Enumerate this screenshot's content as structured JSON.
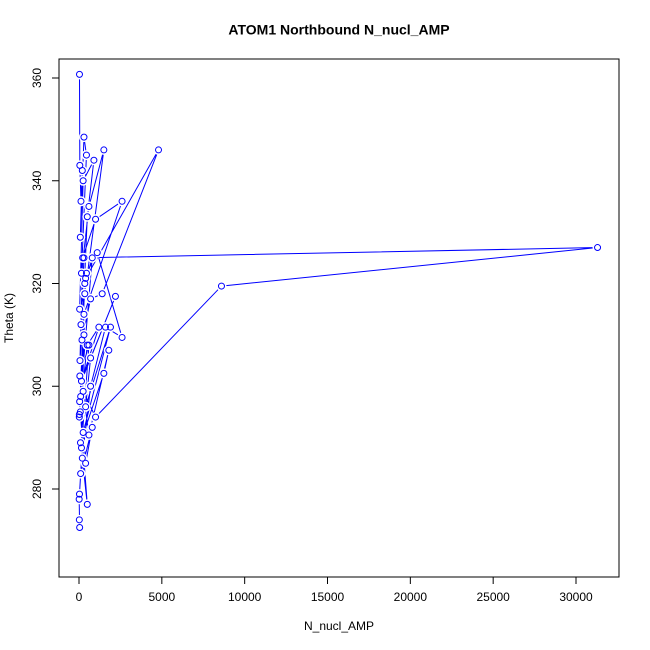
{
  "chart_data": {
    "type": "line",
    "title": "ATOM1 Northbound N_nucl_AMP",
    "x_label": "N_nucl_AMP",
    "y_label": "Theta (K)",
    "color": "#0000ff",
    "markers": true,
    "xlim": [
      -1207,
      32595
    ],
    "ylim": [
      262.87,
      363.7
    ],
    "xticks": [
      0,
      5000,
      10000,
      15000,
      20000,
      25000,
      30000
    ],
    "yticks": [
      280,
      300,
      320,
      340,
      360
    ],
    "series": [
      {
        "name": "N_nucl_AMP",
        "color": "#0000ff",
        "x": [
          30,
          50,
          120,
          200,
          80,
          300,
          450,
          150,
          600,
          1500,
          350,
          40,
          250,
          900,
          500,
          180,
          700,
          1400,
          4800,
          400,
          60,
          220,
          1000,
          2600,
          300,
          100,
          800,
          350,
          20,
          500,
          1200,
          150,
          2200,
          700,
          400,
          1900,
          90,
          1500,
          1800,
          600,
          250,
          1000,
          8600,
          31300,
          300,
          120,
          450,
          1100,
          2600,
          1600,
          700,
          200,
          500,
          80,
          40,
          20,
          300,
          150,
          600,
          50,
          400,
          800,
          100,
          30,
          250,
          10,
          40,
          20
        ],
        "values": [
          360.7,
          343,
          336,
          342,
          329,
          348.5,
          345,
          322,
          335,
          346,
          318,
          315,
          340,
          344,
          333,
          309,
          317,
          318,
          346,
          321,
          305,
          325,
          332.5,
          336,
          314,
          298,
          325,
          320,
          294,
          308,
          311.5,
          301,
          317.5,
          305.5,
          296,
          311.5,
          289,
          302.5,
          307,
          290.5,
          299,
          294,
          319.5,
          327,
          325,
          312,
          322,
          326,
          309.5,
          311.5,
          300,
          286,
          277,
          295,
          297,
          294.5,
          310,
          288,
          308,
          302,
          285,
          292,
          283,
          279,
          291,
          278,
          272.5,
          274
        ]
      }
    ]
  }
}
